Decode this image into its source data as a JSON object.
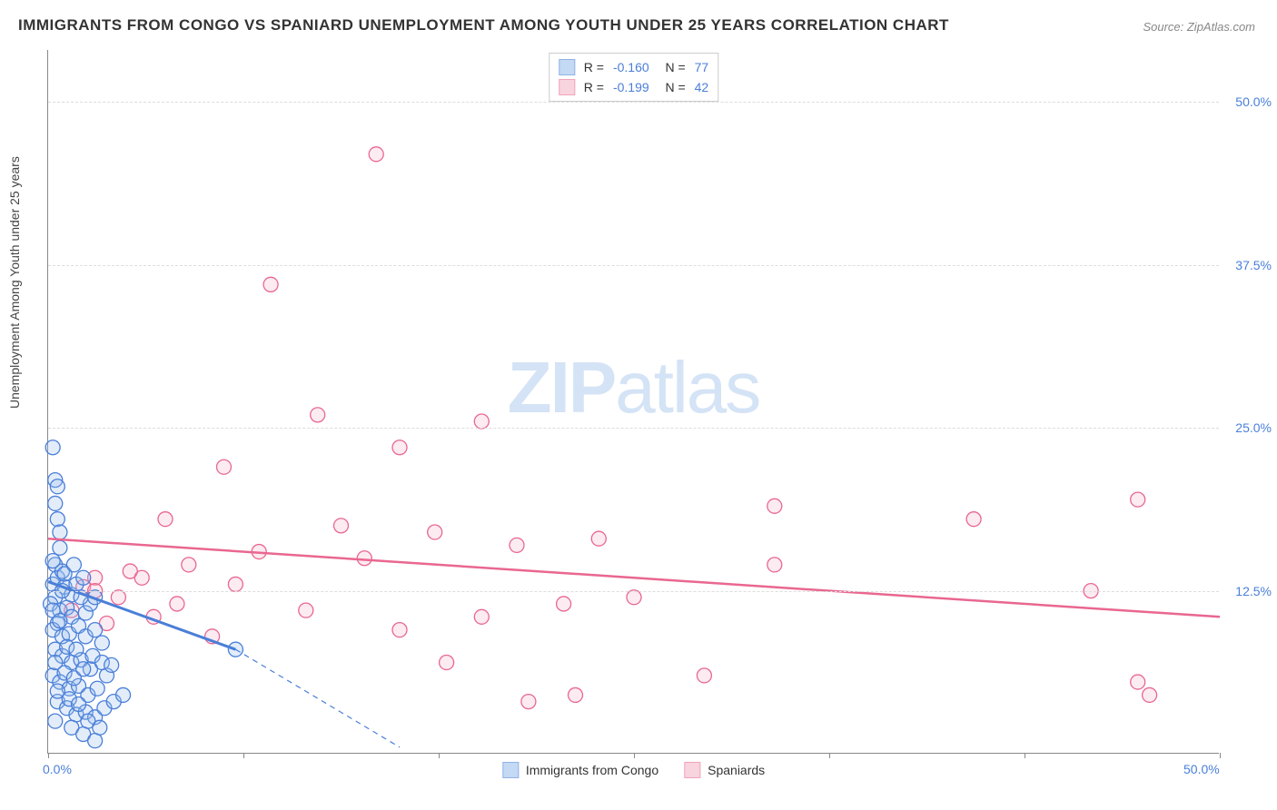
{
  "title": "IMMIGRANTS FROM CONGO VS SPANIARD UNEMPLOYMENT AMONG YOUTH UNDER 25 YEARS CORRELATION CHART",
  "source": "Source: ZipAtlas.com",
  "ylabel": "Unemployment Among Youth under 25 years",
  "watermark_a": "ZIP",
  "watermark_b": "atlas",
  "chart": {
    "type": "scatter",
    "background_color": "#ffffff",
    "grid_color": "#dddddd",
    "axis_color": "#888888",
    "tick_label_color": "#4a7fd8",
    "xlim": [
      0,
      50
    ],
    "ylim": [
      0,
      54
    ],
    "xtick_positions": [
      0,
      8.33,
      16.67,
      25,
      33.33,
      41.67,
      50
    ],
    "xtick_labels_shown": {
      "0": "0.0%",
      "50": "50.0%"
    },
    "ytick_positions": [
      12.5,
      25.0,
      37.5,
      50.0
    ],
    "ytick_labels": [
      "12.5%",
      "25.0%",
      "37.5%",
      "50.0%"
    ],
    "marker_radius": 8,
    "marker_fill_opacity": 0.28,
    "marker_stroke_width": 1.3,
    "series": [
      {
        "name": "Immigrants from Congo",
        "color_stroke": "#4a7fd8",
        "color_fill": "#9cc0ee",
        "R": "-0.160",
        "N": "77",
        "trend": {
          "x1": 0,
          "y1": 13.2,
          "x2": 8.0,
          "y2": 8.0,
          "dash_extend_to_x": 15.0,
          "dash_extend_to_y": 0.5,
          "width": 3
        },
        "points": [
          [
            0.2,
            23.5
          ],
          [
            0.3,
            21.0
          ],
          [
            0.3,
            19.2
          ],
          [
            0.4,
            20.5
          ],
          [
            0.4,
            18.0
          ],
          [
            0.5,
            17.0
          ],
          [
            0.5,
            15.8
          ],
          [
            0.3,
            14.5
          ],
          [
            0.2,
            13.0
          ],
          [
            0.4,
            13.5
          ],
          [
            0.6,
            14.0
          ],
          [
            0.7,
            12.8
          ],
          [
            0.3,
            12.0
          ],
          [
            0.1,
            11.5
          ],
          [
            0.5,
            11.0
          ],
          [
            0.8,
            11.2
          ],
          [
            1.0,
            12.2
          ],
          [
            1.2,
            13.0
          ],
          [
            1.5,
            13.5
          ],
          [
            1.0,
            10.5
          ],
          [
            0.4,
            10.0
          ],
          [
            0.2,
            9.5
          ],
          [
            0.6,
            9.0
          ],
          [
            0.9,
            9.2
          ],
          [
            1.3,
            9.8
          ],
          [
            1.6,
            10.8
          ],
          [
            1.8,
            11.5
          ],
          [
            2.0,
            12.0
          ],
          [
            2.3,
            8.5
          ],
          [
            0.3,
            8.0
          ],
          [
            0.6,
            7.5
          ],
          [
            1.0,
            7.0
          ],
          [
            1.4,
            7.2
          ],
          [
            1.8,
            6.5
          ],
          [
            0.2,
            6.0
          ],
          [
            0.5,
            5.5
          ],
          [
            0.9,
            5.0
          ],
          [
            1.3,
            5.2
          ],
          [
            1.7,
            4.5
          ],
          [
            2.1,
            5.0
          ],
          [
            2.5,
            6.0
          ],
          [
            0.4,
            4.0
          ],
          [
            0.8,
            3.5
          ],
          [
            1.2,
            3.0
          ],
          [
            1.6,
            3.2
          ],
          [
            2.0,
            2.8
          ],
          [
            2.4,
            3.5
          ],
          [
            2.8,
            4.0
          ],
          [
            3.2,
            4.5
          ],
          [
            0.3,
            2.5
          ],
          [
            1.0,
            2.0
          ],
          [
            1.5,
            1.5
          ],
          [
            2.0,
            1.0
          ],
          [
            0.6,
            12.5
          ],
          [
            0.2,
            14.8
          ],
          [
            0.7,
            13.8
          ],
          [
            1.1,
            14.5
          ],
          [
            1.4,
            12.0
          ],
          [
            0.2,
            11.0
          ],
          [
            0.5,
            10.2
          ],
          [
            0.8,
            8.2
          ],
          [
            1.2,
            8.0
          ],
          [
            1.6,
            9.0
          ],
          [
            2.0,
            9.5
          ],
          [
            0.3,
            7.0
          ],
          [
            0.7,
            6.2
          ],
          [
            1.1,
            5.8
          ],
          [
            1.5,
            6.5
          ],
          [
            1.9,
            7.5
          ],
          [
            2.3,
            7.0
          ],
          [
            0.4,
            4.8
          ],
          [
            0.9,
            4.2
          ],
          [
            1.3,
            3.8
          ],
          [
            1.7,
            2.5
          ],
          [
            2.2,
            2.0
          ],
          [
            2.7,
            6.8
          ],
          [
            8.0,
            8.0
          ]
        ]
      },
      {
        "name": "Spaniards",
        "color_stroke": "#e96790",
        "color_fill": "#f5b8cb",
        "R": "-0.199",
        "N": "42",
        "trend": {
          "x1": 0,
          "y1": 16.5,
          "x2": 50,
          "y2": 10.5,
          "width": 2.5
        },
        "points": [
          [
            14.0,
            46.0
          ],
          [
            9.5,
            36.0
          ],
          [
            11.5,
            26.0
          ],
          [
            18.5,
            25.5
          ],
          [
            15.0,
            23.5
          ],
          [
            7.5,
            22.0
          ],
          [
            5.0,
            18.0
          ],
          [
            31.0,
            19.0
          ],
          [
            46.5,
            19.5
          ],
          [
            39.5,
            18.0
          ],
          [
            12.5,
            17.5
          ],
          [
            16.5,
            17.0
          ],
          [
            9.0,
            15.5
          ],
          [
            13.5,
            15.0
          ],
          [
            31.0,
            14.5
          ],
          [
            6.0,
            14.5
          ],
          [
            3.5,
            14.0
          ],
          [
            20.0,
            16.0
          ],
          [
            23.5,
            16.5
          ],
          [
            4.0,
            13.5
          ],
          [
            8.0,
            13.0
          ],
          [
            2.0,
            13.5
          ],
          [
            1.5,
            12.8
          ],
          [
            3.0,
            12.0
          ],
          [
            5.5,
            11.5
          ],
          [
            11.0,
            11.0
          ],
          [
            22.0,
            11.5
          ],
          [
            25.0,
            12.0
          ],
          [
            18.5,
            10.5
          ],
          [
            44.5,
            12.5
          ],
          [
            2.5,
            10.0
          ],
          [
            4.5,
            10.5
          ],
          [
            7.0,
            9.0
          ],
          [
            15.0,
            9.5
          ],
          [
            17.0,
            7.0
          ],
          [
            20.5,
            4.0
          ],
          [
            22.5,
            4.5
          ],
          [
            28.0,
            6.0
          ],
          [
            46.5,
            5.5
          ],
          [
            47.0,
            4.5
          ],
          [
            1.0,
            11.0
          ],
          [
            2.0,
            12.5
          ]
        ]
      }
    ]
  },
  "bottom_legend": [
    {
      "swatch_stroke": "#4a7fd8",
      "swatch_fill": "#9cc0ee",
      "label": "Immigrants from Congo"
    },
    {
      "swatch_stroke": "#e96790",
      "swatch_fill": "#f5b8cb",
      "label": "Spaniards"
    }
  ]
}
